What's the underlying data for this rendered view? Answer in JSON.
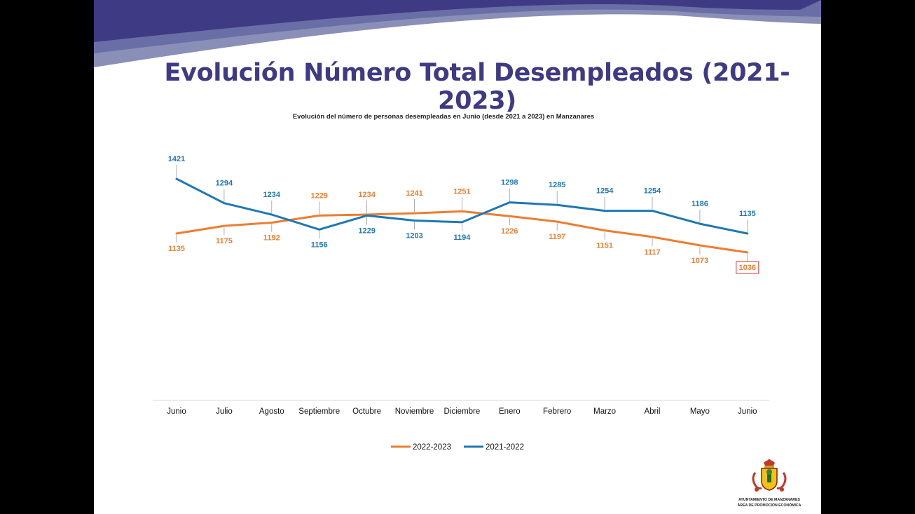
{
  "slide": {
    "title": "Evolución Número Total Desempleados (2021-2023)",
    "logo": {
      "name": "coat-of-arms-icon",
      "line1": "AYUNTAMIENTO DE MANZANARES",
      "line2": "ÁREA DE PROMOCIÓN ECONÓMICA"
    }
  },
  "colors": {
    "banner_dark": "#3f3a84",
    "banner_light": "#8a8fb8",
    "series_2022_2023": "#ed7d31",
    "series_2021_2022": "#1f77b4",
    "highlight_box": "#e05555"
  },
  "chart_data": {
    "type": "line",
    "title": "Evolución del número de personas desempleadas en Junio (desde 2021 a 2023) en Manzanares",
    "xlabel": "",
    "ylabel": "",
    "categories": [
      "Junio",
      "Julio",
      "Agosto",
      "Septiembre",
      "Octubre",
      "Noviembre",
      "Diciembre",
      "Enero",
      "Febrero",
      "Marzo",
      "Abril",
      "Mayo",
      "Junio"
    ],
    "series": [
      {
        "name": "2022-2023",
        "color": "#ed7d31",
        "values": [
          1135,
          1175,
          1192,
          1229,
          1234,
          1241,
          1251,
          1226,
          1197,
          1151,
          1117,
          1073,
          1036
        ]
      },
      {
        "name": "2021-2022",
        "color": "#1f77b4",
        "values": [
          1421,
          1294,
          1234,
          1156,
          1229,
          1203,
          1194,
          1298,
          1285,
          1254,
          1254,
          1186,
          1135
        ]
      }
    ],
    "highlighted_point": {
      "series": "2022-2023",
      "category_index": 12,
      "value": 1036
    },
    "legend": "bottom-center",
    "grid": false,
    "axis": "x-only"
  }
}
